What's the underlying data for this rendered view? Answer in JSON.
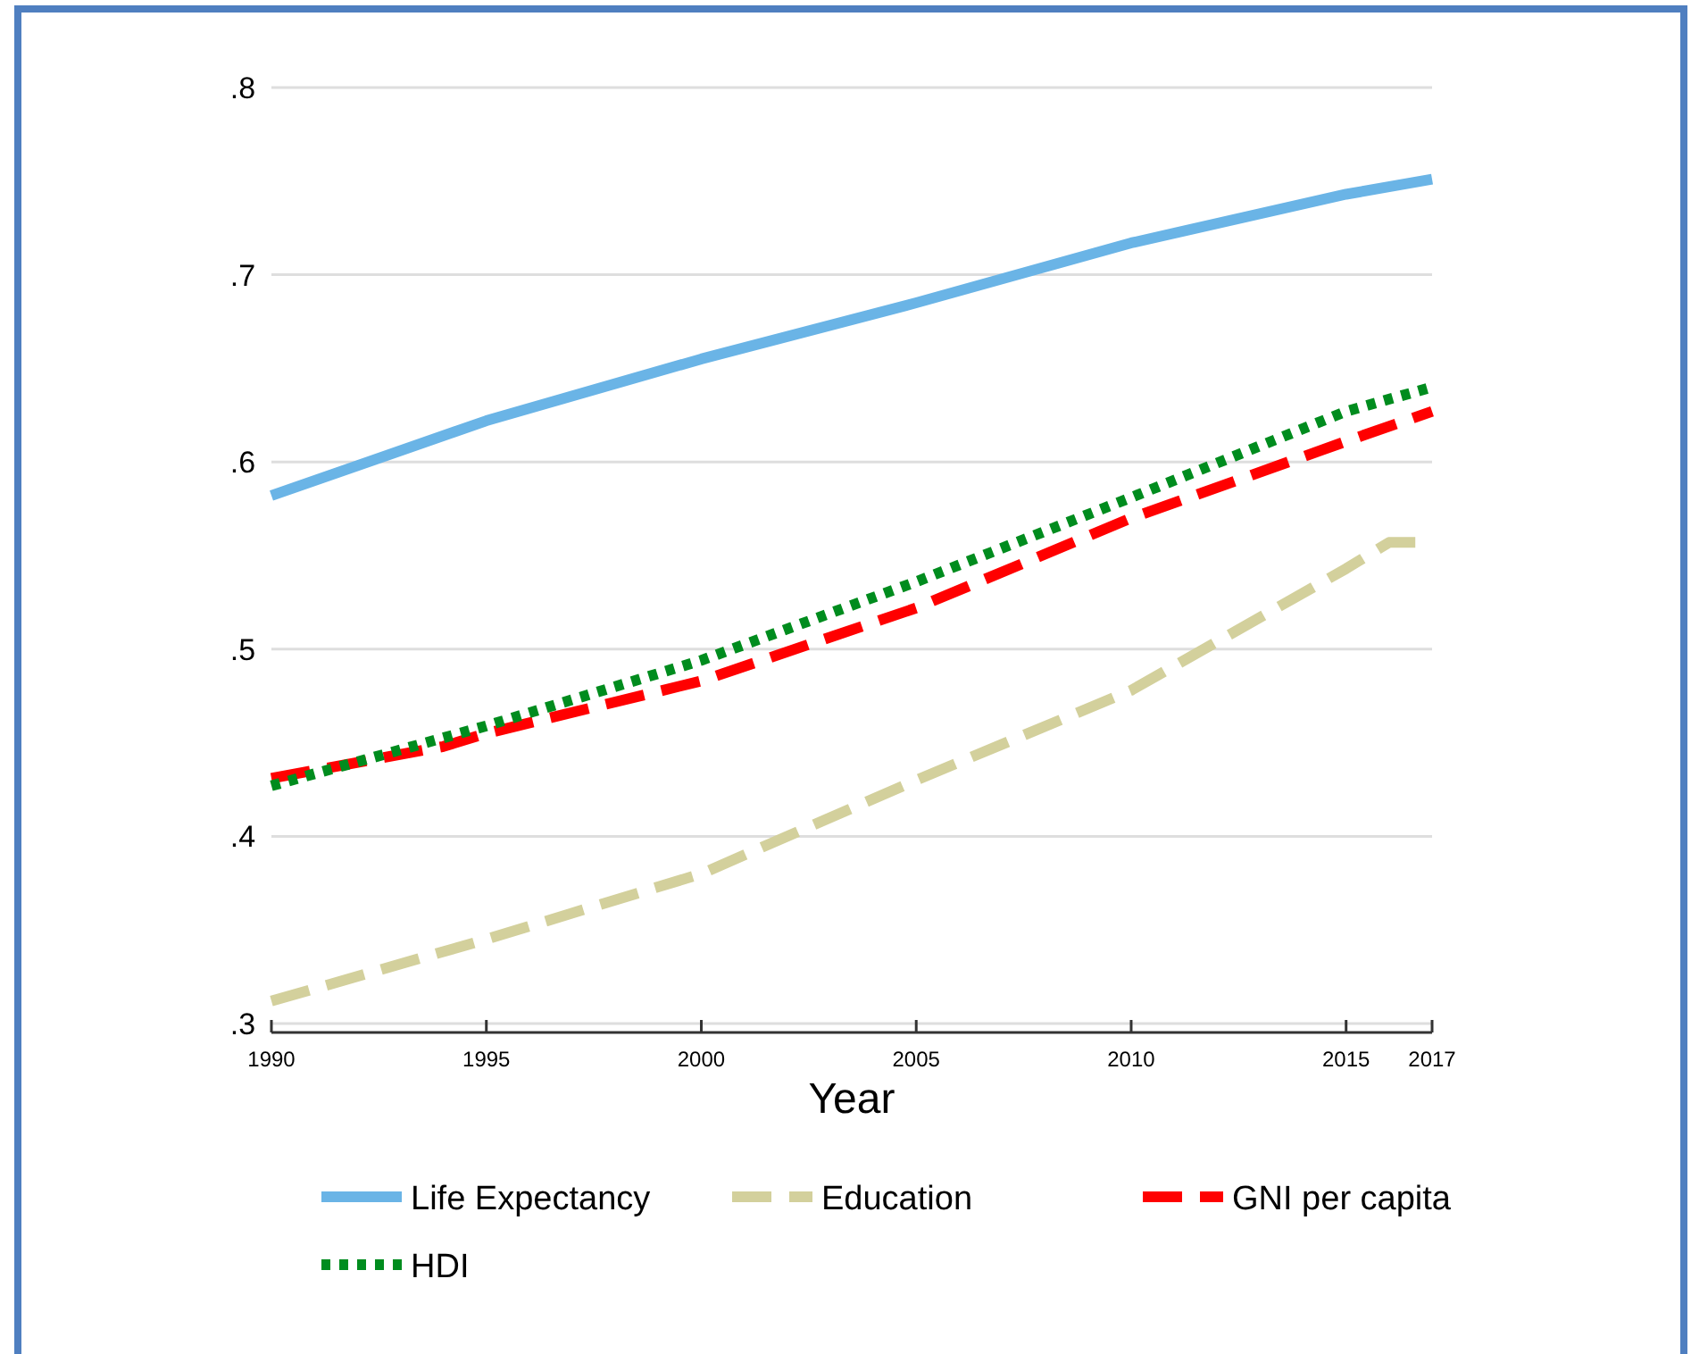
{
  "chart_data": {
    "type": "line",
    "xlabel": "Year",
    "xlim": [
      1990,
      2017
    ],
    "xticks": [
      1990,
      1995,
      2000,
      2005,
      2010,
      2015,
      2017
    ],
    "ylim": [
      0.3,
      0.8
    ],
    "yticks": [
      {
        "value": 0.3,
        "label": ".3"
      },
      {
        "value": 0.4,
        "label": ".4"
      },
      {
        "value": 0.5,
        "label": ".5"
      },
      {
        "value": 0.6,
        "label": ".6"
      },
      {
        "value": 0.7,
        "label": ".7"
      },
      {
        "value": 0.8,
        "label": ".8"
      }
    ],
    "grid": "y",
    "legend": "bottom",
    "series": [
      {
        "name": "Life Expectancy",
        "color": "#6ab4e6",
        "line_style": "solid",
        "x": [
          1990,
          1995,
          2000,
          2005,
          2010,
          2015,
          2017
        ],
        "values": [
          0.582,
          0.622,
          0.655,
          0.685,
          0.717,
          0.743,
          0.751
        ]
      },
      {
        "name": "Education",
        "color": "#d3d09c",
        "line_style": "dashed",
        "x": [
          1990,
          1995,
          2000,
          2005,
          2010,
          2015,
          2016,
          2017
        ],
        "values": [
          0.312,
          0.345,
          0.38,
          0.43,
          0.478,
          0.543,
          0.557,
          0.557
        ]
      },
      {
        "name": "GNI per capita",
        "color": "#ff0000",
        "line_style": "dashed",
        "x": [
          1990,
          1994,
          1995,
          2000,
          2005,
          2010,
          2015,
          2017
        ],
        "values": [
          0.431,
          0.448,
          0.455,
          0.483,
          0.522,
          0.57,
          0.611,
          0.627
        ]
      },
      {
        "name": "HDI",
        "color": "#008c1e",
        "line_style": "dotted",
        "x": [
          1990,
          1995,
          2000,
          2005,
          2010,
          2015,
          2017
        ],
        "values": [
          0.427,
          0.459,
          0.494,
          0.536,
          0.581,
          0.627,
          0.64
        ]
      }
    ]
  }
}
